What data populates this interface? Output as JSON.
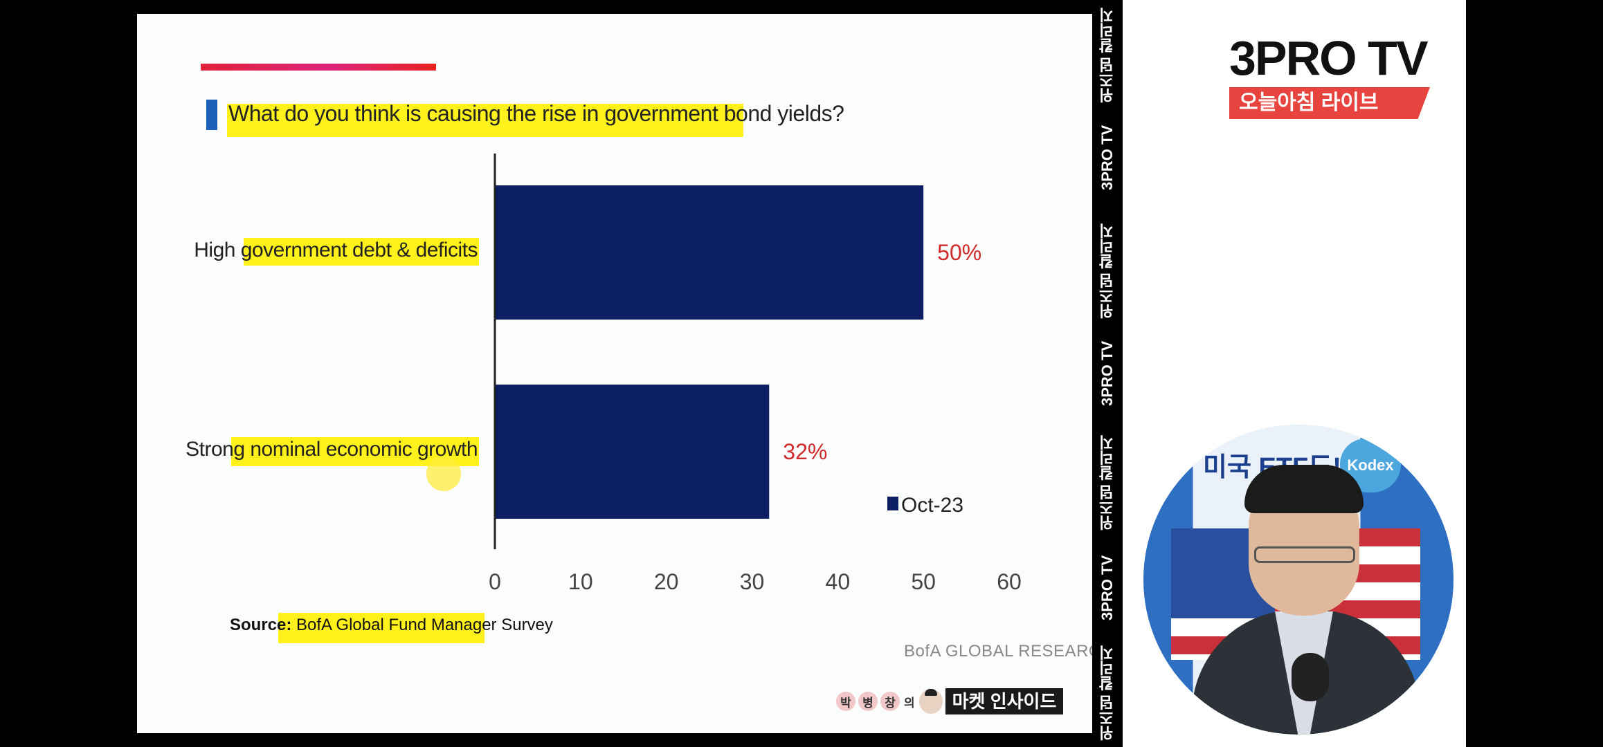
{
  "slide": {
    "title": "What do you think is causing the rise in government bond yields?",
    "source_label": "Source:",
    "source_text": "BofA Global Fund Manager Survey",
    "brand_footer": "BofA GLOBAL RESEARCH",
    "insight_syllables": [
      "박",
      "병",
      "창"
    ],
    "insight_particle": "의",
    "insight_tag": "마켓 인사이드"
  },
  "chart_data": {
    "type": "bar",
    "orientation": "horizontal",
    "title": "What do you think is causing the rise in government bond yields?",
    "categories": [
      "High government debt & deficits",
      "Strong nominal economic growth"
    ],
    "series": [
      {
        "name": "Oct-23",
        "values": [
          50,
          32
        ],
        "color": "#0c1f63"
      }
    ],
    "data_labels": [
      "50%",
      "32%"
    ],
    "data_label_color": "#d12a2a",
    "xlim": [
      0,
      60
    ],
    "xticks": [
      "0",
      "10",
      "20",
      "30",
      "40",
      "50",
      "60"
    ],
    "grid": false,
    "legend": "bottom-right"
  },
  "sidebar_strip": [
    "위즈덤 칼리지",
    "3PRO TV",
    "위즈덤 칼리지",
    "3PRO TV",
    "위즈덤 칼리지",
    "3PRO TV",
    "위즈덤 칼리지"
  ],
  "logo": {
    "main": "3PRO TV",
    "sub": "오늘아침 라이브",
    "accent": "#e8443f"
  },
  "camera": {
    "banner": "미국 ETF도!",
    "brand_badge": "Kodex"
  }
}
